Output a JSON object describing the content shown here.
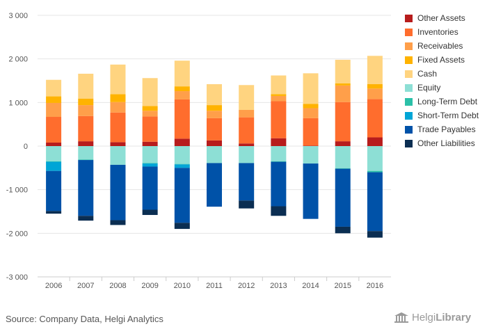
{
  "chart_data": {
    "type": "bar",
    "stacked": true,
    "title": "",
    "xlabel": "",
    "ylabel": "",
    "ylim": [
      -3000,
      3000
    ],
    "yticks": [
      3000,
      2000,
      1000,
      0,
      -1000,
      -2000,
      -3000
    ],
    "ytick_labels": [
      "3 000",
      "2 000",
      "1 000",
      "0",
      "-1 000",
      "-2 000",
      "-3 000"
    ],
    "grid": true,
    "legend_position": "right",
    "categories": [
      "2006",
      "2007",
      "2008",
      "2009",
      "2010",
      "2011",
      "2012",
      "2013",
      "2014",
      "2015",
      "2016"
    ],
    "series": [
      {
        "name": "Other Assets",
        "color": "#b71c1c",
        "values": [
          80,
          110,
          90,
          100,
          170,
          130,
          60,
          180,
          10,
          110,
          200
        ]
      },
      {
        "name": "Inventories",
        "color": "#ff6d2d",
        "values": [
          590,
          580,
          680,
          580,
          900,
          510,
          600,
          850,
          630,
          900,
          880
        ]
      },
      {
        "name": "Receivables",
        "color": "#ff9f4a",
        "values": [
          320,
          250,
          240,
          130,
          190,
          170,
          170,
          120,
          230,
          380,
          240
        ]
      },
      {
        "name": "Fixed Assets",
        "color": "#ffb300",
        "values": [
          150,
          150,
          180,
          110,
          110,
          130,
          0,
          40,
          100,
          50,
          100
        ]
      },
      {
        "name": "Cash",
        "color": "#ffd480",
        "values": [
          380,
          570,
          680,
          640,
          590,
          480,
          570,
          430,
          700,
          540,
          650
        ]
      },
      {
        "name": "Equity",
        "color": "#8ddfd5",
        "values": [
          -350,
          -310,
          -430,
          -390,
          -410,
          -390,
          -390,
          -350,
          -400,
          -510,
          -570
        ]
      },
      {
        "name": "Long-Term Debt",
        "color": "#2bc0a8",
        "values": [
          -10,
          -10,
          0,
          -10,
          -10,
          0,
          0,
          -10,
          0,
          -10,
          -30
        ]
      },
      {
        "name": "Short-Term Debt",
        "color": "#00a5d6",
        "values": [
          -210,
          0,
          0,
          -70,
          -80,
          0,
          0,
          0,
          0,
          0,
          0
        ]
      },
      {
        "name": "Trade Payables",
        "color": "#0052a8",
        "values": [
          -920,
          -1280,
          -1270,
          -990,
          -1260,
          -1000,
          -860,
          -1020,
          -1270,
          -1330,
          -1350
        ]
      },
      {
        "name": "Other Liabilities",
        "color": "#0b2e52",
        "values": [
          -60,
          -110,
          -110,
          -120,
          -140,
          0,
          -180,
          -220,
          0,
          -150,
          -150
        ]
      }
    ]
  },
  "footer": {
    "source": "Source: Company Data, Helgi Analytics",
    "logo_light": "Helgi",
    "logo_bold": "Library"
  }
}
